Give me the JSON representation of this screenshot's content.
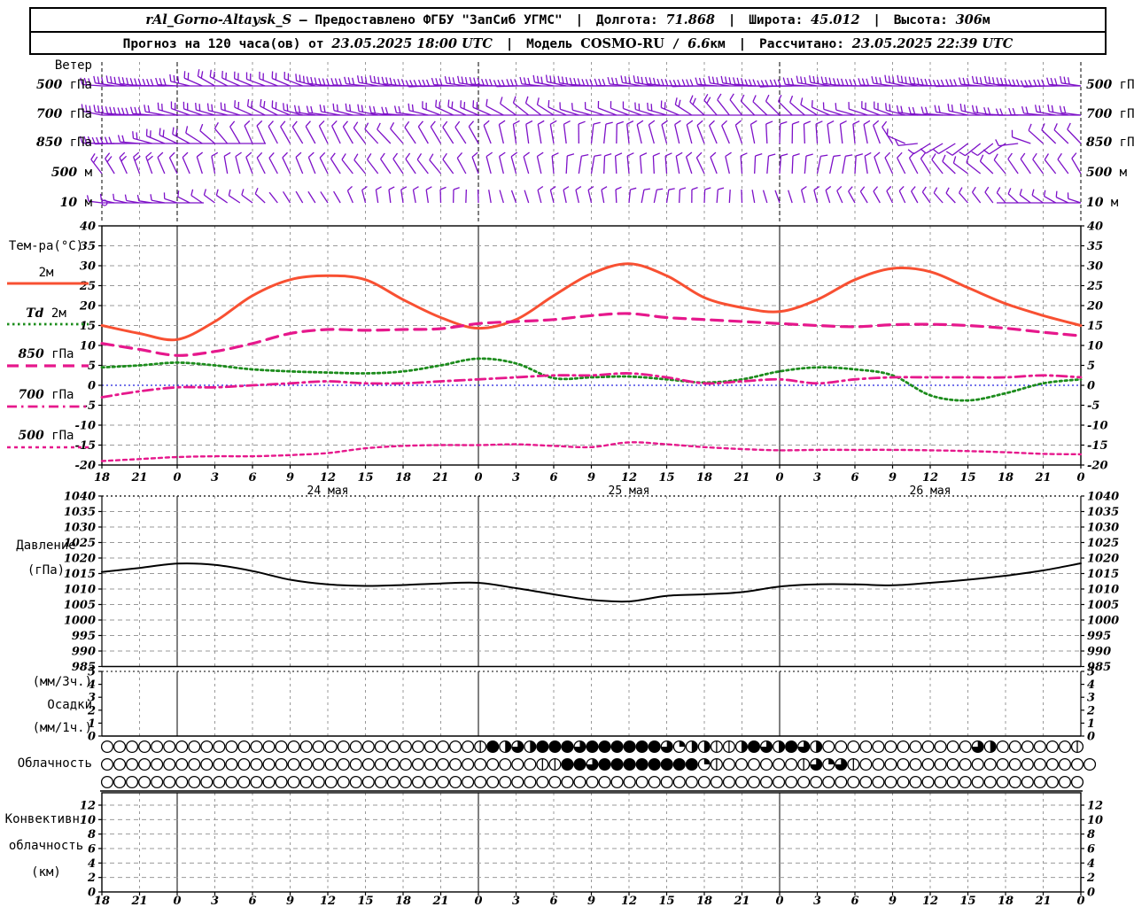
{
  "header": {
    "station": "rAl_Gorno-Altaysk_S",
    "provided": "— Предоставлено ФГБУ \"ЗапСиб УГМС\"",
    "sep": "|",
    "lon_label": "Долгота:",
    "lon": "71.868",
    "lat_label": "Широта:",
    "lat": "45.012",
    "alt_label": "Высота:",
    "alt": "306",
    "alt_unit": "м",
    "forecast_label": "Прогноз на 120 часа(ов) от",
    "forecast_start": "23.05.2025 18:00 UTC",
    "model_label": "Модель",
    "model_name": "COSMO-RU",
    "model_slash": "/",
    "model_res": "6.6",
    "model_res_unit": "км",
    "calc_label": "Рассчитано:",
    "calc_time": "23.05.2025 22:39 UTC"
  },
  "labels": {
    "wind_title": "Ветер",
    "levels": [
      {
        "num": "500",
        "unit": "гПа"
      },
      {
        "num": "700",
        "unit": "гПа"
      },
      {
        "num": "850",
        "unit": "гПа"
      },
      {
        "num": "500",
        "unit": "м"
      },
      {
        "num": "10",
        "unit": "м"
      }
    ],
    "temp_title": "Тем-ра(°C)",
    "temp_legend": [
      {
        "num": "",
        "name": "2м"
      },
      {
        "num": "Td",
        "name": "2м"
      },
      {
        "num": "850",
        "name": "гПа"
      },
      {
        "num": "700",
        "name": "гПа"
      },
      {
        "num": "500",
        "name": "гПа"
      }
    ],
    "pressure": [
      "Давление",
      "(гПа)"
    ],
    "precip": [
      "(мм/3ч.)",
      "Осадки",
      "(мм/1ч.)"
    ],
    "cloud": "Облачность",
    "convective": [
      "Конвективн.",
      "облачность",
      "(км)"
    ]
  },
  "colors": {
    "barb": "#7D10C8",
    "t2m": "#F85032",
    "td2m": "#1C8C1C",
    "pink": "#E6188C",
    "zero_line": "#2222DD",
    "grid": "#999999",
    "axis": "#000000"
  },
  "chart_data": [
    {
      "type": "wind-barbs",
      "title": "Ветер",
      "levels": [
        {
          "label": "500 гПа",
          "angles": [
            4,
            4,
            8,
            24,
            28,
            18,
            10,
            6,
            4,
            3,
            3,
            4,
            6,
            7,
            5,
            4,
            4,
            3,
            3,
            4,
            6,
            7,
            5,
            4,
            3,
            3,
            3
          ],
          "feathers": [
            3,
            3,
            3,
            2,
            2,
            2,
            3,
            3,
            3,
            3,
            3,
            3,
            3,
            3,
            3,
            3,
            3,
            3,
            3,
            3,
            3,
            3,
            3,
            3,
            3,
            3,
            3
          ]
        },
        {
          "label": "700 гПа",
          "angles": [
            6,
            8,
            12,
            18,
            24,
            20,
            12,
            8,
            10,
            16,
            26,
            36,
            30,
            20,
            15,
            22,
            38,
            55,
            45,
            30,
            20,
            14,
            10,
            8,
            6,
            5,
            5
          ],
          "feathers": [
            3,
            3,
            2,
            2,
            2,
            2,
            2,
            2,
            2,
            2,
            2,
            1,
            1,
            1,
            1,
            2,
            2,
            1,
            1,
            1,
            1,
            2,
            2,
            2,
            2,
            2,
            2
          ]
        },
        {
          "label": "850 гПа",
          "angles": [
            3,
            6,
            22,
            46,
            60,
            66,
            60,
            55,
            50,
            56,
            66,
            76,
            86,
            92,
            86,
            76,
            66,
            76,
            86,
            92,
            80,
            60,
            -32,
            -40,
            -28,
            36,
            52
          ],
          "feathers": [
            3,
            2,
            2,
            1,
            1,
            1,
            1,
            1,
            1,
            1,
            1,
            1,
            1,
            1,
            1,
            1,
            1,
            1,
            1,
            1,
            1,
            1,
            1,
            1,
            1,
            1,
            1
          ]
        },
        {
          "label": "500 м",
          "angles": [
            58,
            64,
            70,
            76,
            70,
            66,
            60,
            56,
            50,
            56,
            66,
            76,
            86,
            96,
            90,
            80,
            70,
            82,
            96,
            102,
            90,
            70,
            52,
            42,
            46,
            56,
            60
          ],
          "feathers": [
            2,
            2,
            1,
            1,
            1,
            1,
            1,
            1,
            1,
            1,
            1,
            1,
            1,
            1,
            1,
            1,
            1,
            1,
            1,
            1,
            1,
            1,
            1,
            1,
            1,
            1,
            1
          ]
        },
        {
          "label": "10 м",
          "angles": [
            4,
            10,
            20,
            32,
            42,
            52,
            62,
            72,
            82,
            90,
            84,
            76,
            70,
            82,
            92,
            100,
            94,
            84,
            76,
            70,
            66,
            60,
            56,
            50,
            46,
            40,
            12
          ],
          "feathers": [
            1,
            1,
            1,
            1,
            1,
            0,
            0,
            1,
            1,
            1,
            0,
            0,
            1,
            1,
            1,
            1,
            1,
            0,
            0,
            1,
            1,
            1,
            1,
            1,
            1,
            1,
            1
          ]
        }
      ]
    },
    {
      "type": "line",
      "title": "Тем-ра(°C)",
      "x_hours": [
        "18",
        "21",
        "0",
        "3",
        "6",
        "9",
        "12",
        "15",
        "18",
        "21",
        "0",
        "3",
        "6",
        "9",
        "12",
        "15",
        "18",
        "21",
        "0",
        "3",
        "6",
        "9",
        "12",
        "15",
        "18",
        "21",
        "0"
      ],
      "dates": [
        "24 мая",
        "25 мая",
        "26 мая"
      ],
      "ylim": [
        -20,
        40
      ],
      "ytick_step": 5,
      "zero_line": 0,
      "grid": true,
      "series": [
        {
          "name": "2м",
          "color": "#F85032",
          "style": "solid",
          "width": 3,
          "values": [
            15,
            13,
            11.5,
            16,
            22.5,
            26.5,
            27.5,
            26.5,
            21.5,
            17,
            14.3,
            16.5,
            22.5,
            28,
            30.5,
            27.5,
            22,
            19.5,
            18.5,
            21.5,
            26.5,
            29.3,
            28.5,
            24.5,
            20.5,
            17.5,
            15
          ]
        },
        {
          "name": "Td 2м",
          "color": "#1C8C1C",
          "style": "dotted",
          "width": 2.8,
          "values": [
            4.5,
            5,
            5.7,
            5,
            4,
            3.5,
            3.2,
            3,
            3.5,
            5,
            6.7,
            5.5,
            1.8,
            2,
            2.2,
            1.5,
            0.7,
            1.5,
            3.5,
            4.5,
            4,
            2.5,
            -2.5,
            -3.8,
            -2,
            0.5,
            1.5
          ]
        },
        {
          "name": "850 гПа",
          "color": "#E6188C",
          "style": "longdash",
          "width": 3.2,
          "values": [
            10.5,
            9,
            7.5,
            8.5,
            10.5,
            13,
            14,
            13.8,
            14,
            14.2,
            15.5,
            16,
            16.5,
            17.5,
            18,
            17,
            16.5,
            16,
            15.5,
            15,
            14.7,
            15.2,
            15.3,
            15,
            14.3,
            13.3,
            12.4
          ]
        },
        {
          "name": "700 гПа",
          "color": "#E6188C",
          "style": "dashdot",
          "width": 2.8,
          "values": [
            -3,
            -1.5,
            -0.5,
            -0.5,
            0,
            0.5,
            1,
            0.5,
            0.5,
            1,
            1.5,
            2,
            2.5,
            2.5,
            3,
            2,
            0.5,
            1,
            1.5,
            0.5,
            1.5,
            2,
            2,
            2,
            2,
            2.5,
            2
          ]
        },
        {
          "name": "500 гПа",
          "color": "#E6188C",
          "style": "finedash",
          "width": 2.4,
          "values": [
            -19,
            -18.5,
            -18,
            -17.8,
            -17.8,
            -17.5,
            -17,
            -15.8,
            -15.2,
            -15,
            -15,
            -14.8,
            -15.2,
            -15.5,
            -14.3,
            -14.8,
            -15.5,
            -16,
            -16.3,
            -16.2,
            -16.2,
            -16.2,
            -16.3,
            -16.5,
            -16.8,
            -17.2,
            -17.3
          ]
        }
      ]
    },
    {
      "type": "line",
      "title": "Давление (гПа)",
      "ylim": [
        985,
        1040
      ],
      "ytick_step": 5,
      "grid": true,
      "series": [
        {
          "name": "Давление",
          "color": "#000000",
          "style": "solid",
          "width": 2,
          "values": [
            1015.5,
            1016.8,
            1018.2,
            1017.8,
            1015.8,
            1013,
            1011.5,
            1011,
            1011.3,
            1011.8,
            1012,
            1010.3,
            1008.3,
            1006.5,
            1006,
            1007.8,
            1008.3,
            1009,
            1010.8,
            1011.5,
            1011.5,
            1011.2,
            1012,
            1013,
            1014.3,
            1016,
            1018.3
          ]
        }
      ]
    },
    {
      "type": "bar",
      "title": "Осадки (мм/3ч., мм/1ч.)",
      "ylim": [
        0,
        5
      ],
      "ytick_step": 1,
      "values": []
    },
    {
      "type": "symbols",
      "title": "Облачность",
      "legend": "0=ясно, 1=1/4, 2=1/2, 3=3/4, 4=сплошная, 5=след",
      "rows": [
        "0000000000000000000000000000005423244434444443122552432432000000000000320000005",
        "00000000000000000000000000000000000554434444444415000000531350000000000000000000",
        "0000000000000000000000000000000000000000000000000000000000000000000000000000000"
      ]
    },
    {
      "type": "line",
      "title": "Конвективная облачность (км)",
      "ylim": [
        0,
        12
      ],
      "ytick_step": 2,
      "values": []
    }
  ]
}
